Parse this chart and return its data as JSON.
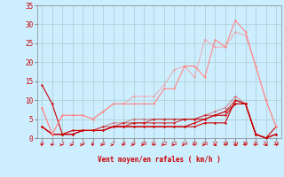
{
  "x": [
    0,
    1,
    2,
    3,
    4,
    5,
    6,
    7,
    8,
    9,
    10,
    11,
    12,
    13,
    14,
    15,
    16,
    17,
    18,
    19,
    20,
    21,
    22,
    23
  ],
  "series": [
    {
      "y": [
        14,
        9,
        1,
        2,
        2,
        2,
        2,
        3,
        3,
        3,
        3,
        3,
        3,
        3,
        3,
        3,
        4,
        4,
        4,
        10,
        9,
        1,
        0,
        3
      ],
      "color": "#cc0000",
      "alpha": 1.0,
      "lw": 0.8
    },
    {
      "y": [
        3,
        1,
        1,
        1,
        2,
        2,
        2,
        3,
        3,
        3,
        3,
        3,
        3,
        3,
        3,
        4,
        5,
        6,
        6,
        9,
        9,
        1,
        0,
        1
      ],
      "color": "#cc0000",
      "alpha": 1.0,
      "lw": 0.8
    },
    {
      "y": [
        3,
        1,
        1,
        1,
        2,
        2,
        2,
        3,
        3,
        4,
        4,
        4,
        4,
        4,
        5,
        5,
        5,
        6,
        7,
        9,
        9,
        1,
        0,
        1
      ],
      "color": "#cc0000",
      "alpha": 0.8,
      "lw": 0.8
    },
    {
      "y": [
        3,
        1,
        1,
        1,
        2,
        2,
        3,
        3,
        4,
        4,
        4,
        5,
        5,
        5,
        5,
        5,
        6,
        6,
        7,
        10,
        9,
        1,
        0,
        1
      ],
      "color": "#cc0000",
      "alpha": 0.6,
      "lw": 0.8
    },
    {
      "y": [
        3,
        1,
        1,
        2,
        2,
        2,
        3,
        4,
        4,
        5,
        5,
        5,
        5,
        5,
        5,
        5,
        6,
        7,
        8,
        11,
        9,
        1,
        0,
        1
      ],
      "color": "#cc0000",
      "alpha": 0.4,
      "lw": 0.8
    },
    {
      "y": [
        8,
        1,
        6,
        6,
        6,
        5,
        7,
        9,
        9,
        9,
        9,
        9,
        13,
        13,
        19,
        19,
        16,
        26,
        24,
        31,
        28,
        19,
        10,
        3
      ],
      "color": "#ff8888",
      "alpha": 1.0,
      "lw": 0.8
    },
    {
      "y": [
        8,
        1,
        6,
        6,
        6,
        5,
        7,
        9,
        9,
        11,
        11,
        11,
        14,
        18,
        19,
        16,
        26,
        24,
        24,
        28,
        27,
        19,
        10,
        3
      ],
      "color": "#ff8888",
      "alpha": 0.6,
      "lw": 0.8
    }
  ],
  "wind_arrows": {
    "x": [
      0,
      1,
      2,
      3,
      4,
      5,
      6,
      7,
      8,
      9,
      10,
      11,
      12,
      13,
      14,
      15,
      16,
      17,
      18,
      19,
      20,
      21,
      22,
      23
    ],
    "angles_deg": [
      225,
      225,
      90,
      90,
      90,
      225,
      90,
      90,
      225,
      90,
      90,
      225,
      90,
      90,
      90,
      225,
      90,
      45,
      135,
      45,
      225,
      225,
      45,
      135
    ]
  },
  "background_color": "#cceeff",
  "grid_color": "#aacccc",
  "text_color": "#cc0000",
  "xlabel": "Vent moyen/en rafales ( km/h )",
  "xlim": [
    -0.5,
    23.5
  ],
  "ylim": [
    0,
    35
  ],
  "yticks": [
    0,
    5,
    10,
    15,
    20,
    25,
    30,
    35
  ],
  "xticks": [
    0,
    1,
    2,
    3,
    4,
    5,
    6,
    7,
    8,
    9,
    10,
    11,
    12,
    13,
    14,
    15,
    16,
    17,
    18,
    19,
    20,
    21,
    22,
    23
  ]
}
